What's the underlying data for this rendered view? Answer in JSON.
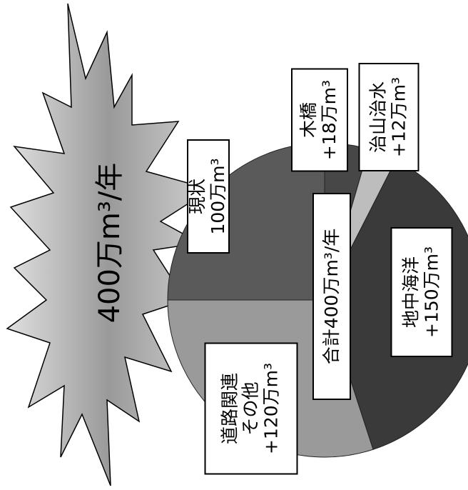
{
  "chart_data": {
    "type": "pie",
    "title": "400万m³/年",
    "center_label": "合計400万m³/年",
    "categories": [
      "現状",
      "木橋",
      "治山治水",
      "地中海洋",
      "道路関連\nその他"
    ],
    "values": [
      100,
      18,
      12,
      150,
      120
    ],
    "value_labels": [
      "100万m³",
      "+18万m³",
      "+12万m³",
      "+150万m³",
      "+120万m³"
    ],
    "colors": [
      "#5a5a5a",
      "#474747",
      "#bdbdbd",
      "#3a3a3a",
      "#9a9a9a"
    ]
  }
}
